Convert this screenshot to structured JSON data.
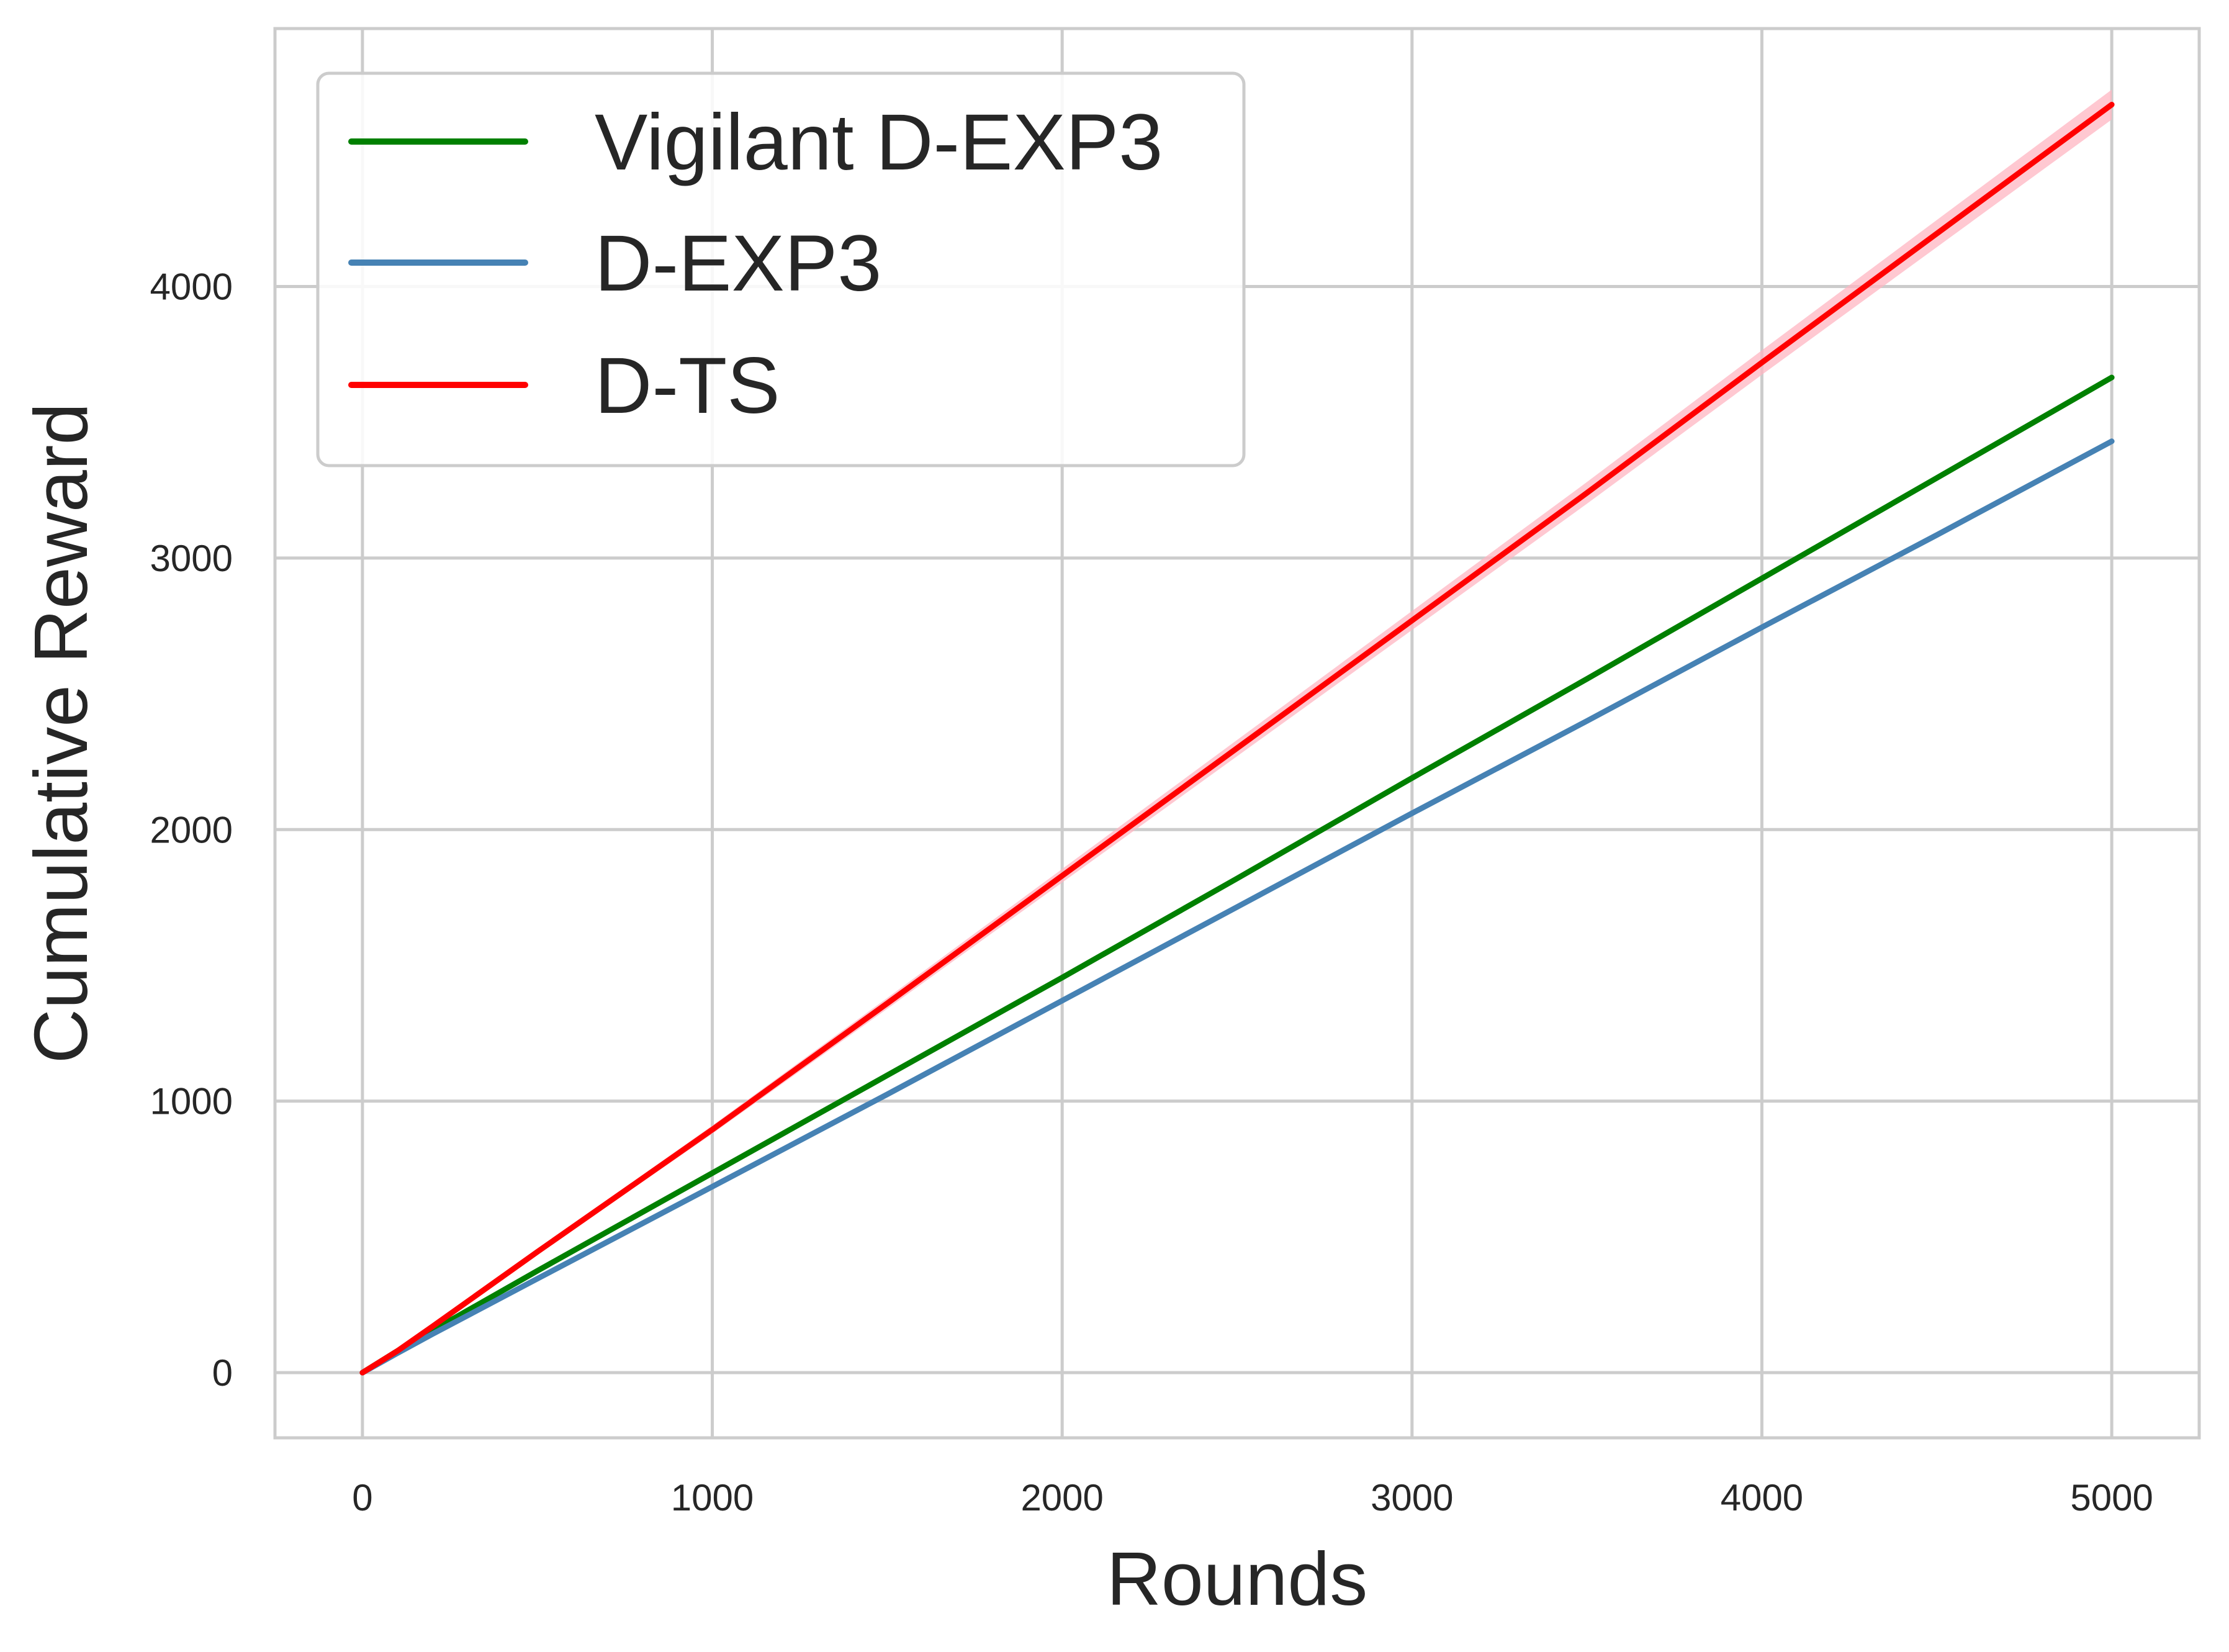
{
  "chart_data": {
    "type": "line",
    "title": "",
    "xlabel": "Rounds",
    "ylabel": "Cumulative Reward",
    "xlim": [
      -250,
      5250
    ],
    "ylim": [
      -240,
      4950
    ],
    "xticks": [
      0,
      1000,
      2000,
      3000,
      4000,
      5000
    ],
    "yticks": [
      0,
      1000,
      2000,
      3000,
      4000
    ],
    "grid": true,
    "legend_position": "upper-left",
    "series": [
      {
        "name": "Vigilant D-EXP3",
        "color": "#008000",
        "x": [
          0,
          100,
          200,
          500,
          1000,
          1500,
          2000,
          2500,
          3000,
          3500,
          4000,
          4500,
          5000
        ],
        "y": [
          0,
          80,
          155,
          375,
          735,
          1095,
          1455,
          1820,
          2190,
          2555,
          2925,
          3295,
          3665
        ]
      },
      {
        "name": "D-EXP3",
        "color": "#4682b4",
        "x": [
          0,
          100,
          200,
          500,
          1000,
          1500,
          2000,
          2500,
          3000,
          3500,
          4000,
          4500,
          5000
        ],
        "y": [
          0,
          72,
          142,
          346,
          685,
          1025,
          1370,
          1715,
          2060,
          2400,
          2745,
          3085,
          3430
        ]
      },
      {
        "name": "D-TS",
        "color": "#ff0000",
        "band_color": "#ffb6c1",
        "x": [
          0,
          100,
          200,
          500,
          1000,
          1500,
          2000,
          2500,
          3000,
          3500,
          4000,
          4500,
          5000
        ],
        "y": [
          0,
          80,
          170,
          445,
          895,
          1360,
          1830,
          2300,
          2770,
          3240,
          3720,
          4195,
          4670
        ],
        "band": [
          0,
          3,
          5,
          10,
          15,
          20,
          25,
          30,
          35,
          40,
          45,
          50,
          55
        ]
      }
    ]
  }
}
